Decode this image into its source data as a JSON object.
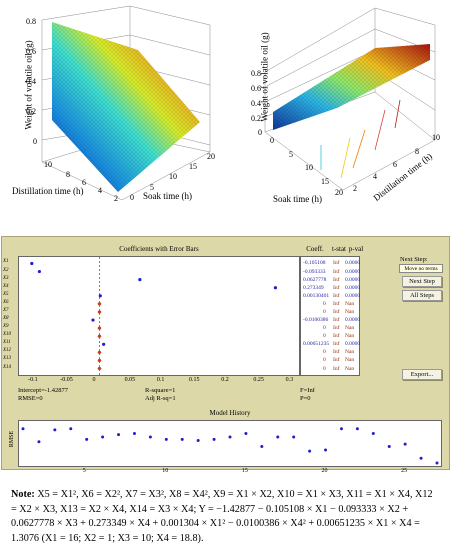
{
  "plot_left": {
    "zlabel": "Weight of volatile oil (g)",
    "xlabel": "Distillation time (h)",
    "ylabel": "Soak time (h)",
    "zticks": [
      "0.8",
      "0.6",
      "0.4",
      "0.2",
      "0"
    ],
    "xticks": [
      "10",
      "8",
      "6",
      "4",
      "2"
    ],
    "yticks": [
      "0",
      "5",
      "10",
      "15",
      "20"
    ]
  },
  "plot_right": {
    "zlabel": "Weight of volatile oil (g)",
    "xlabel": "Soak time (h)",
    "ylabel": "Distillation time (h)",
    "zticks": [
      "0.8",
      "0.6",
      "0.4",
      "0.2",
      "0"
    ],
    "xticks": [
      "0",
      "5",
      "10",
      "15",
      "20"
    ],
    "yticks": [
      "2",
      "4",
      "6",
      "8",
      "10"
    ]
  },
  "panel": {
    "title": "Coefficients with Error Bars",
    "col_coeff": "Coeff.",
    "col_tstat": "t-stat",
    "col_pval": "p-val",
    "next_step_label": "Next Step:",
    "move_no_terms": "Move no terms",
    "next_step_button": "Next Step",
    "all_steps_button": "All Steps",
    "export_button": "Export...",
    "intercept": "Intercept=-1.42877",
    "rmse": "RMSE=0",
    "rsquare": "R-square=1",
    "adj_rsq": "Adj R-sq=1",
    "f_stat": "F=Inf",
    "p_val": "P=0",
    "history_title": "Model History",
    "history_ylabel": "RMSE",
    "x_ticks": [
      "-0.1",
      "-0.05",
      "0",
      "0.05",
      "0.1",
      "0.15",
      "0.2",
      "0.25",
      "0.3"
    ],
    "history_x_ticks": [
      "5",
      "10",
      "15",
      "20",
      "25"
    ]
  },
  "rows": [
    {
      "label": "X1",
      "coeff": "-0.105108",
      "tstat": "Inf",
      "pval": "0.0000"
    },
    {
      "label": "X2",
      "coeff": "-0.093333",
      "tstat": "Inf",
      "pval": "0.0000"
    },
    {
      "label": "X3",
      "coeff": "0.0627778",
      "tstat": "Inf",
      "pval": "0.0000"
    },
    {
      "label": "X4",
      "coeff": "0.273349",
      "tstat": "Inf",
      "pval": "0.0000"
    },
    {
      "label": "X5",
      "coeff": "0.00130401",
      "tstat": "Inf",
      "pval": "0.0000"
    },
    {
      "label": "X6",
      "coeff": "0",
      "tstat": "Inf",
      "pval": "Nan"
    },
    {
      "label": "X7",
      "coeff": "0",
      "tstat": "Inf",
      "pval": "Nan"
    },
    {
      "label": "X8",
      "coeff": "-0.0100386",
      "tstat": "Inf",
      "pval": "0.0000"
    },
    {
      "label": "X9",
      "coeff": "0",
      "tstat": "Inf",
      "pval": "Nan"
    },
    {
      "label": "X10",
      "coeff": "0",
      "tstat": "Inf",
      "pval": "Nan"
    },
    {
      "label": "X11",
      "coeff": "0.00651235",
      "tstat": "Inf",
      "pval": "0.0000"
    },
    {
      "label": "X12",
      "coeff": "0",
      "tstat": "Inf",
      "pval": "Nan"
    },
    {
      "label": "X13",
      "coeff": "0",
      "tstat": "Inf",
      "pval": "Nan"
    },
    {
      "label": "X14",
      "coeff": "0",
      "tstat": "Inf",
      "pval": "Nan"
    }
  ],
  "coef_points": [
    -0.105108,
    -0.093333,
    0.0627778,
    0.273349,
    0.00130401,
    0,
    0,
    -0.0100386,
    0,
    0,
    0.00651235,
    0,
    0,
    0
  ],
  "history_points": [
    0.29,
    0.18,
    0.28,
    0.29,
    0.2,
    0.22,
    0.24,
    0.25,
    0.22,
    0.2,
    0.2,
    0.19,
    0.2,
    0.22,
    0.25,
    0.14,
    0.22,
    0.22,
    0.1,
    0.11,
    0.29,
    0.29,
    0.25,
    0.14,
    0.16,
    0.04,
    0
  ],
  "note": {
    "prefix": "Note:",
    "line1": "X5 = X1², X6 = X2², X7 = X3², X8 = X4², X9 = X1 × X2, X10 = X1 × X3, X11 = X1 × X4, X12 = X2 × X3,",
    "line2": "X13 = X2 × X4, X14 = X3 × X4; Y = −1.42877 − 0.105108 × X1 − 0.093333 × X2 + 0.0627778 × X3 +",
    "line3": "0.273349 × X4 + 0.001304 × X1² − 0.0100386 × X4² + 0.00651235 × X1 × X4 = 1.3076 (X1 = 16;",
    "line4": "X2 = 1; X3 = 10; X4 = 18.8)."
  }
}
